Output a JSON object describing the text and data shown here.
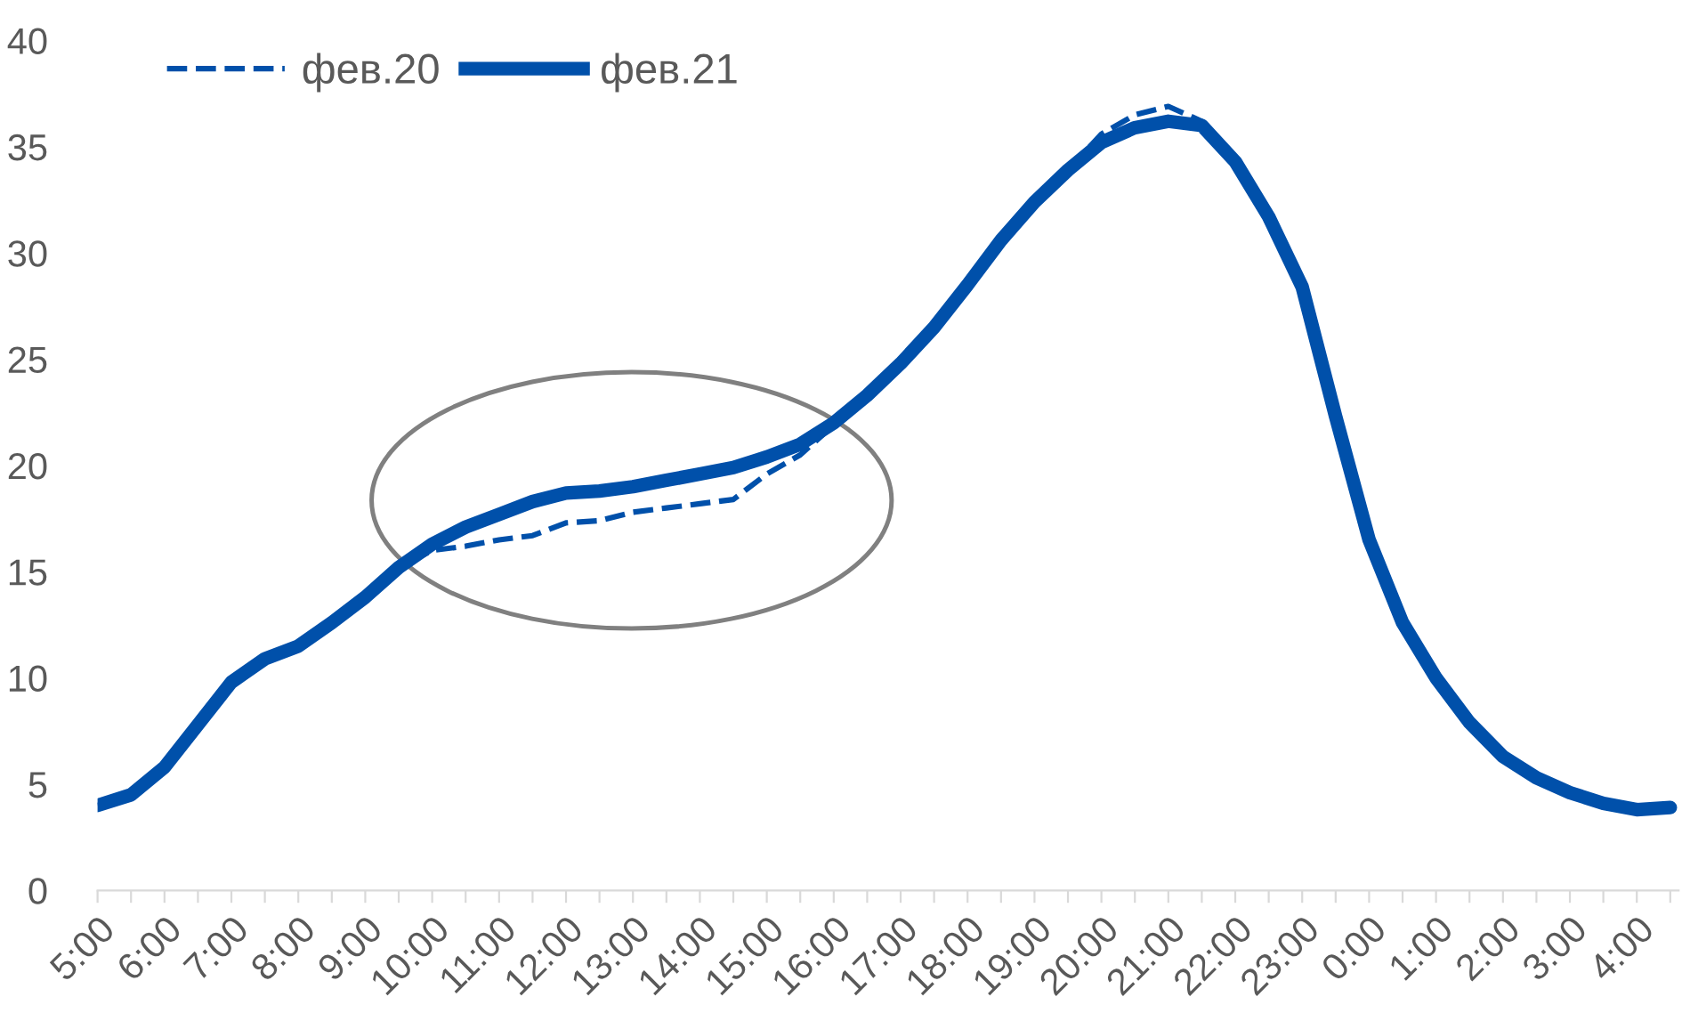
{
  "chart_data": {
    "type": "line",
    "legend": "top left",
    "ylim": [
      0,
      40
    ],
    "yticks": [
      0,
      5,
      10,
      15,
      20,
      25,
      30,
      35,
      40
    ],
    "categories": [
      "5:00",
      null,
      "6:00",
      null,
      "7:00",
      null,
      "8:00",
      null,
      "9:00",
      null,
      "10:00",
      null,
      "11:00",
      null,
      "12:00",
      null,
      "13:00",
      null,
      "14:00",
      null,
      "15:00",
      null,
      "16:00",
      null,
      "17:00",
      null,
      "18:00",
      null,
      "19:00",
      null,
      "20:00",
      null,
      "21:00",
      null,
      "22:00",
      null,
      "23:00",
      null,
      "0:00",
      null,
      "1:00",
      null,
      "2:00",
      null,
      "3:00",
      null,
      "4:00",
      null
    ],
    "series": [
      {
        "name": "фев.20",
        "color": "#0050aa",
        "line_style": "dashed",
        "values": [
          4.0,
          4.5,
          5.8,
          7.8,
          9.8,
          10.9,
          11.5,
          12.6,
          13.8,
          15.2,
          16.0,
          16.2,
          16.5,
          16.7,
          17.3,
          17.4,
          17.8,
          18.0,
          18.2,
          18.4,
          19.6,
          20.5,
          21.9,
          23.3,
          24.8,
          26.5,
          28.5,
          30.6,
          32.4,
          33.9,
          35.6,
          36.5,
          36.9,
          36.2,
          34.3,
          31.7,
          28.4,
          22.3,
          16.5,
          12.6,
          10.0,
          7.9,
          6.3,
          5.3,
          4.6,
          4.1,
          3.8,
          3.9
        ]
      },
      {
        "name": "фев.21",
        "color": "#0050aa",
        "line_style": "solid",
        "values": [
          4.0,
          4.5,
          5.8,
          7.8,
          9.8,
          10.9,
          11.5,
          12.6,
          13.8,
          15.2,
          16.3,
          17.1,
          17.7,
          18.3,
          18.7,
          18.8,
          19.0,
          19.3,
          19.6,
          19.9,
          20.4,
          21.0,
          22.0,
          23.3,
          24.8,
          26.5,
          28.5,
          30.6,
          32.4,
          33.9,
          35.2,
          35.9,
          36.2,
          36.0,
          34.3,
          31.7,
          28.4,
          22.3,
          16.5,
          12.6,
          10.0,
          7.9,
          6.3,
          5.3,
          4.6,
          4.1,
          3.8,
          3.9
        ]
      }
    ]
  }
}
